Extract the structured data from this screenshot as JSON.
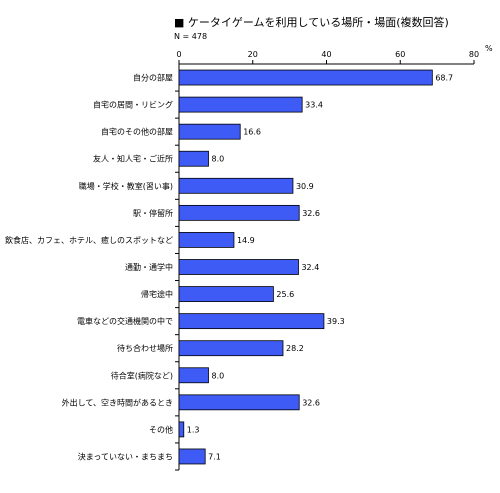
{
  "chart_data": {
    "type": "bar",
    "orientation": "horizontal",
    "title": "■ ケータイゲームを利用している場所・場面(複数回答)",
    "note": "N = 478",
    "unit": "%",
    "xlim": [
      0,
      80
    ],
    "ticks": [
      0,
      20,
      40,
      60,
      80
    ],
    "categories": [
      "自分の部屋",
      "自宅の居間・リビング",
      "自宅のその他の部屋",
      "友人・知人宅・ご近所",
      "職場・学校・教室(習い事)",
      "駅・停留所",
      "飲食店、カフェ、ホテル、癒しのスポットなど",
      "通勤・通学中",
      "帰宅途中",
      "電車などの交通機関の中で",
      "待ち合わせ場所",
      "待合室(病院など)",
      "外出して、空き時間があるとき",
      "その他",
      "決まっていない・まちまち"
    ],
    "values": [
      68.7,
      33.4,
      16.6,
      8.0,
      30.9,
      32.6,
      14.9,
      32.4,
      25.6,
      39.3,
      28.2,
      8.0,
      32.6,
      1.3,
      7.1
    ],
    "value_labels": [
      "68.7",
      "33.4",
      "16.6",
      "8.0",
      "30.9",
      "32.6",
      "14.9",
      "32.4",
      "25.6",
      "39.3",
      "28.2",
      "8.0",
      "32.6",
      "1.3",
      "7.1"
    ],
    "grid": false,
    "colors": {
      "bar": "#3f5bf5",
      "bar_stroke": "#000000"
    }
  }
}
